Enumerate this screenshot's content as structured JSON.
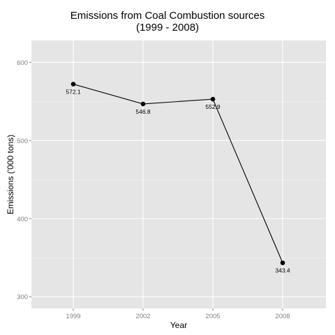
{
  "chart_data": {
    "type": "line",
    "title_line1": "Emissions from Coal Combustion sources",
    "title_line2": "(1999 - 2008)",
    "xlabel": "Year",
    "ylabel": "Emissions ('000 tons)",
    "categories": [
      "1999",
      "2002",
      "2005",
      "2008"
    ],
    "values": [
      572.1,
      546.8,
      552.9,
      343.4
    ],
    "data_labels": [
      "572.1",
      "546.8",
      "552.9",
      "343.4"
    ],
    "yticks": [
      300,
      400,
      500,
      600
    ],
    "ytick_labels": [
      "300",
      "400",
      "500",
      "600"
    ],
    "ylim": [
      285,
      628
    ],
    "grid": true,
    "colors": {
      "panel": "#e5e5e5",
      "grid": "#ffffff",
      "line": "#000000",
      "tick_text": "#7f7f7f"
    }
  }
}
